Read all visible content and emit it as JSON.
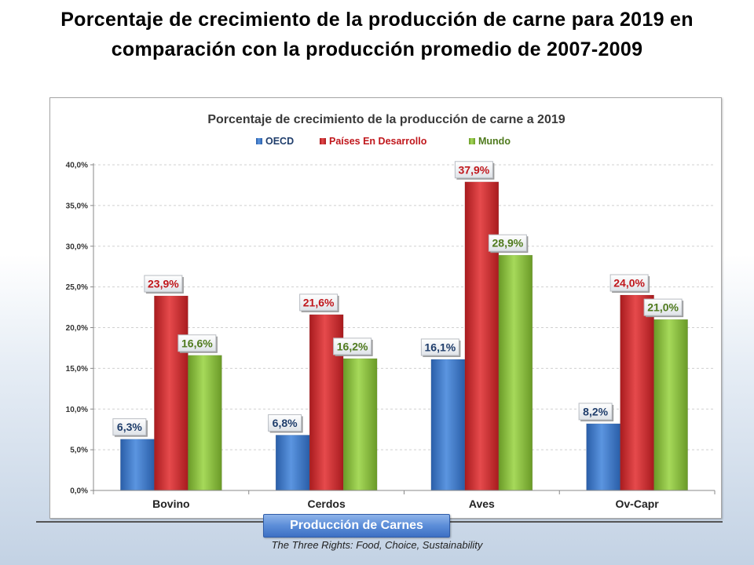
{
  "slide": {
    "title": "Porcentaje de crecimiento de la producción de carne para 2019 en comparación con la producción promedio de 2007-2009"
  },
  "footer": {
    "button_label": "Producción de Carnes",
    "caption": "The Three Rights: Food, Choice, Sustainability"
  },
  "chart_data": {
    "type": "bar",
    "title": "Porcentaje de crecimiento de la producción de carne a 2019",
    "categories": [
      "Bovino",
      "Cerdos",
      "Aves",
      "Ov-Capr"
    ],
    "series": [
      {
        "name": "OECD",
        "color": "#3a77c9",
        "values": [
          6.3,
          6.8,
          16.1,
          8.2
        ],
        "labels": [
          "6,3%",
          "6,8%",
          "16,1%",
          "8,2%"
        ]
      },
      {
        "name": "Países En Desarrollo",
        "color": "#d6282b",
        "values": [
          23.9,
          21.6,
          37.9,
          24.0
        ],
        "labels": [
          "23,9%",
          "21,6%",
          "37,9%",
          "24,0%"
        ]
      },
      {
        "name": "Mundo",
        "color": "#8dc63f",
        "values": [
          16.6,
          16.2,
          28.9,
          21.0
        ],
        "labels": [
          "16,6%",
          "16,2%",
          "28,9%",
          "21,0%"
        ]
      }
    ],
    "label_colors": [
      "#1f3d6b",
      "#c0171c",
      "#4f7a1d"
    ],
    "ylim": [
      0,
      40
    ],
    "yticks": [
      "0,0%",
      "5,0%",
      "10,0%",
      "15,0%",
      "20,0%",
      "25,0%",
      "30,0%",
      "35,0%",
      "40,0%"
    ],
    "legend_position": "top",
    "grid": true
  }
}
